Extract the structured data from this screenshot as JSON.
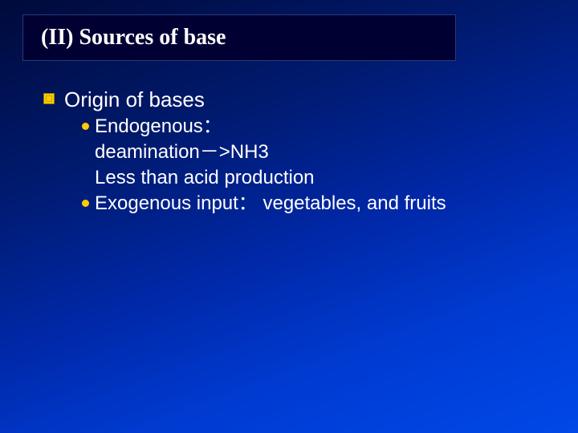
{
  "title": "(II) Sources of base",
  "bullet": {
    "square_color": "#ffcc00",
    "square_border": "#808000",
    "dot_color": "#ffcc00"
  },
  "text_color": "#ffffff",
  "background_gradient": [
    "#000a3a",
    "#001a6e",
    "#0028a8",
    "#003ad0",
    "#0048e8"
  ],
  "title_box_bg": "#000033",
  "content": {
    "level1": "Origin of bases",
    "items": [
      {
        "label": "Endogenous：",
        "sub": [
          "deamination－>NH3",
          "Less than acid production"
        ]
      },
      {
        "label": "Exogenous input： vegetables, and fruits",
        "sub": []
      }
    ]
  },
  "fonts": {
    "title_family": "Times New Roman, serif",
    "title_size_pt": 21,
    "title_weight": "bold",
    "body_family": "Arial, sans-serif",
    "body_size_pt": 18
  }
}
